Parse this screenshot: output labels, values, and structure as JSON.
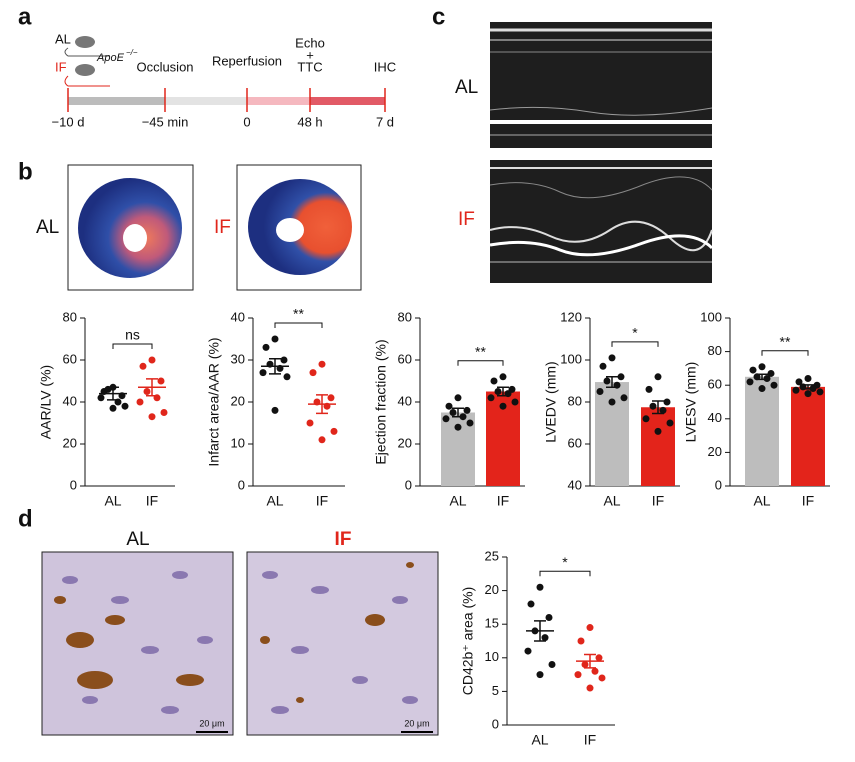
{
  "panel_labels": [
    "a",
    "b",
    "c",
    "d"
  ],
  "timeline": {
    "groups": [
      "AL",
      "IF"
    ],
    "strain": "ApoE",
    "strain_sup": "−/−",
    "events": [
      "Occlusion",
      "Reperfusion",
      "Echo",
      "+",
      "TTC",
      "IHC"
    ],
    "times": [
      "−10 d",
      "−45 min",
      "0",
      "48 h",
      "7 d"
    ]
  },
  "panel_b": {
    "labels": [
      "AL",
      "IF"
    ]
  },
  "panel_c": {
    "labels": [
      "AL",
      "IF"
    ]
  },
  "panel_d": {
    "labels": [
      "AL",
      "IF"
    ],
    "scale_bars": [
      "20 μm",
      "20 μm"
    ]
  },
  "chart_data": [
    {
      "type": "dot",
      "ylabel": "AAR/LV (%)",
      "ylim": [
        0,
        80
      ],
      "yticks": [
        0,
        20,
        40,
        60,
        80
      ],
      "annotation": "ns",
      "groups": [
        {
          "label": "AL",
          "dot_color": "#111111",
          "points": [
            47,
            45,
            43,
            46,
            40,
            42,
            38,
            37
          ],
          "mean": 44,
          "sem": 3
        },
        {
          "label": "IF",
          "dot_color": "#e0261b",
          "points": [
            60,
            57,
            50,
            45,
            42,
            40,
            35,
            33
          ],
          "mean": 47,
          "sem": 4
        }
      ]
    },
    {
      "type": "dot",
      "ylabel": "Infarct area/AAR (%)",
      "ylim": [
        0,
        40
      ],
      "yticks": [
        0,
        10,
        20,
        30,
        40
      ],
      "annotation": "**",
      "groups": [
        {
          "label": "AL",
          "dot_color": "#111111",
          "points": [
            35,
            33,
            30,
            29,
            28,
            27,
            26,
            18
          ],
          "mean": 28.5,
          "sem": 1.8
        },
        {
          "label": "IF",
          "dot_color": "#e0261b",
          "points": [
            29,
            27,
            21,
            20,
            19,
            15,
            13,
            11
          ],
          "mean": 19.5,
          "sem": 2.2
        }
      ]
    },
    {
      "type": "bar",
      "ylabel": "Ejection fraction (%)",
      "ylim": [
        0,
        80
      ],
      "yticks": [
        0,
        20,
        40,
        60,
        80
      ],
      "annotation": "**",
      "groups": [
        {
          "label": "AL",
          "color": "#bdbdbd",
          "dot_color": "#111111",
          "points": [
            42,
            38,
            36,
            35,
            33,
            32,
            30,
            28
          ],
          "mean": 35,
          "sem": 2
        },
        {
          "label": "IF",
          "color": "#e3241b",
          "dot_color": "#111111",
          "points": [
            52,
            50,
            46,
            45,
            44,
            42,
            40,
            38
          ],
          "mean": 45,
          "sem": 2
        }
      ]
    },
    {
      "type": "bar",
      "ylabel": "LVEDV (mm)",
      "ylim": [
        40,
        120
      ],
      "yticks": [
        40,
        60,
        80,
        100,
        120
      ],
      "annotation": "*",
      "groups": [
        {
          "label": "AL",
          "color": "#bdbdbd",
          "dot_color": "#111111",
          "points": [
            101,
            97,
            92,
            90,
            88,
            85,
            82,
            80
          ],
          "mean": 89.5,
          "sem": 2.5
        },
        {
          "label": "IF",
          "color": "#e3241b",
          "dot_color": "#111111",
          "points": [
            92,
            86,
            80,
            78,
            76,
            72,
            70,
            66
          ],
          "mean": 77.5,
          "sem": 3
        }
      ]
    },
    {
      "type": "bar",
      "ylabel": "LVESV (mm)",
      "ylim": [
        0,
        100
      ],
      "yticks": [
        0,
        20,
        40,
        60,
        80,
        100
      ],
      "annotation": "**",
      "groups": [
        {
          "label": "AL",
          "color": "#bdbdbd",
          "dot_color": "#111111",
          "points": [
            71,
            69,
            67,
            65,
            64,
            62,
            60,
            58
          ],
          "mean": 65,
          "sem": 1.5
        },
        {
          "label": "IF",
          "color": "#e3241b",
          "dot_color": "#111111",
          "points": [
            64,
            62,
            60,
            59,
            58,
            57,
            56,
            55
          ],
          "mean": 59,
          "sem": 1.2
        }
      ]
    },
    {
      "type": "dot",
      "ylabel": "CD42b⁺ area (%)",
      "ylim": [
        0,
        25
      ],
      "yticks": [
        0,
        5,
        10,
        15,
        20,
        25
      ],
      "annotation": "*",
      "groups": [
        {
          "label": "AL",
          "dot_color": "#111111",
          "points": [
            20.5,
            18,
            16,
            14,
            13,
            11,
            9,
            7.5
          ],
          "mean": 14,
          "sem": 1.5
        },
        {
          "label": "IF",
          "dot_color": "#e0261b",
          "points": [
            14.5,
            12.5,
            10,
            9,
            8,
            7.5,
            7,
            5.5
          ],
          "mean": 9.5,
          "sem": 1
        }
      ]
    }
  ]
}
